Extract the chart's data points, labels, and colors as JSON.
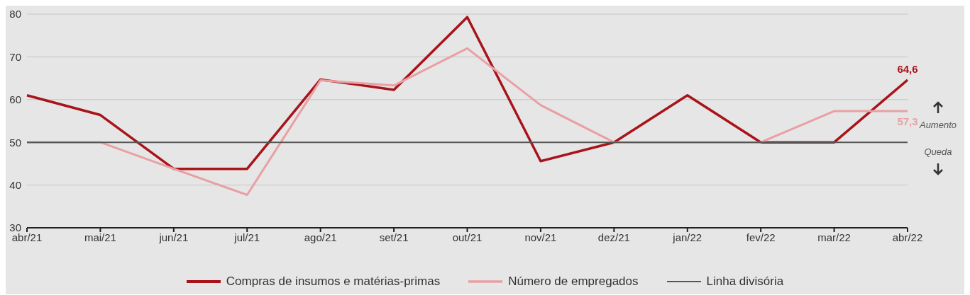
{
  "chart_data": {
    "type": "line",
    "categories": [
      "abr/21",
      "mai/21",
      "jun/21",
      "jul/21",
      "ago/21",
      "set/21",
      "out/21",
      "nov/21",
      "dez/21",
      "jan/22",
      "fev/22",
      "mar/22",
      "abr/22"
    ],
    "series": [
      {
        "name": "Compras de insumos e matérias-primas",
        "color": "#a8141a",
        "values": [
          61.0,
          56.4,
          43.8,
          43.8,
          64.7,
          62.3,
          79.3,
          45.6,
          50,
          61.0,
          50,
          50,
          64.6
        ],
        "value_labels": [
          null,
          null,
          null,
          null,
          null,
          null,
          null,
          null,
          null,
          null,
          null,
          null,
          "64,6"
        ]
      },
      {
        "name": "Número de empregados",
        "color": "#e8a0a4",
        "values": [
          50,
          50,
          43.8,
          37.7,
          64.5,
          63.3,
          72.0,
          58.7,
          50,
          50,
          50,
          57.3,
          57.3
        ],
        "value_labels": [
          null,
          null,
          null,
          null,
          null,
          null,
          null,
          null,
          null,
          null,
          null,
          null,
          "57,3"
        ]
      }
    ],
    "ylim": [
      30,
      80
    ],
    "yticks": [
      30,
      40,
      50,
      60,
      70,
      80
    ],
    "grid": "y",
    "legend": "bottom",
    "marker": "none",
    "line_style": "solid",
    "ref_lines": [
      {
        "axis": "y",
        "value": 50,
        "label": "Linha divisória",
        "color": "#555555"
      }
    ],
    "annotations": [
      "Aumento",
      "Queda"
    ]
  }
}
